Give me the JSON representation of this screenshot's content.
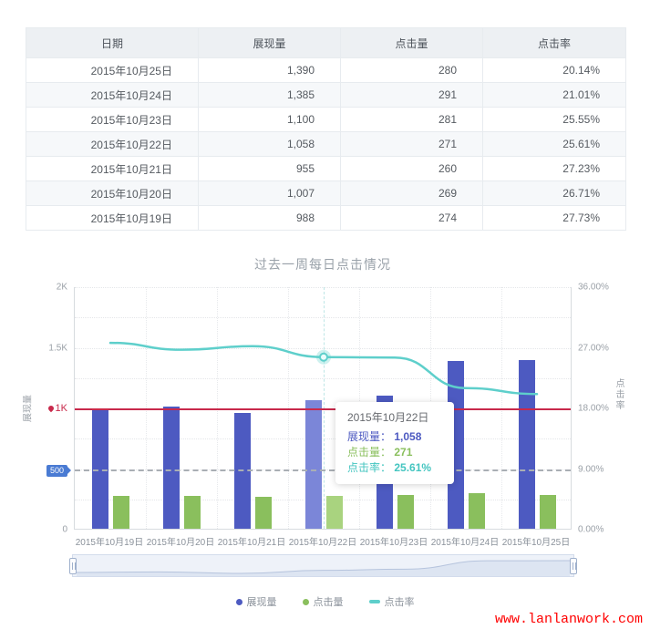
{
  "table": {
    "columns": [
      "日期",
      "展现量",
      "点击量",
      "点击率"
    ],
    "rows": [
      [
        "2015年10月25日",
        "1,390",
        "280",
        "20.14%"
      ],
      [
        "2015年10月24日",
        "1,385",
        "291",
        "21.01%"
      ],
      [
        "2015年10月23日",
        "1,100",
        "281",
        "25.55%"
      ],
      [
        "2015年10月22日",
        "1,058",
        "271",
        "25.61%"
      ],
      [
        "2015年10月21日",
        "955",
        "260",
        "27.23%"
      ],
      [
        "2015年10月20日",
        "1,007",
        "269",
        "26.71%"
      ],
      [
        "2015年10月19日",
        "988",
        "274",
        "27.73%"
      ]
    ]
  },
  "chart_data": {
    "type": "bar",
    "subtype": "grouped bars + smooth line, dual y-axis",
    "title": "过去一周每日点击情况",
    "categories": [
      "2015年10月19日",
      "2015年10月20日",
      "2015年10月21日",
      "2015年10月22日",
      "2015年10月23日",
      "2015年10月24日",
      "2015年10月25日"
    ],
    "series": [
      {
        "name": "展现量",
        "type": "bar",
        "axis": "left",
        "color": "#4d5ac1",
        "highlight_color": "#7b86d8",
        "values": [
          988,
          1007,
          955,
          1058,
          1100,
          1385,
          1390
        ]
      },
      {
        "name": "点击量",
        "type": "bar",
        "axis": "left",
        "color": "#8abf5d",
        "highlight_color": "#a9d37f",
        "values": [
          274,
          269,
          260,
          271,
          281,
          291,
          280
        ]
      },
      {
        "name": "点击率",
        "type": "line",
        "axis": "right",
        "color": "#5ecfcb",
        "values": [
          27.73,
          26.71,
          27.23,
          25.61,
          25.55,
          21.01,
          20.14
        ]
      }
    ],
    "highlight_index": 3,
    "left_axis": {
      "name": "展现量",
      "min": 0,
      "max": 2000,
      "ticks": [
        "2K",
        "1.5K",
        "1K",
        "500",
        "0"
      ]
    },
    "right_axis": {
      "name": "点击率",
      "min": 0,
      "max": 36,
      "ticks": [
        "36.00%",
        "27.00%",
        "18.00%",
        "9.00%",
        "0.00%"
      ]
    },
    "marklines": [
      {
        "value": 1000,
        "label": "1K",
        "color": "#c8294b",
        "style": "solid"
      },
      {
        "value": 500,
        "label": "500",
        "color": "#a9aeb4",
        "style": "dashed",
        "label_bg": "#4a7bd3"
      }
    ],
    "legend": [
      {
        "label": "展现量",
        "color": "#4d5ac1",
        "marker": "dot"
      },
      {
        "label": "点击量",
        "color": "#8abf5d",
        "marker": "dot"
      },
      {
        "label": "点击率",
        "color": "#5ecfcb",
        "marker": "dash"
      }
    ],
    "legend_position": "bottom",
    "grid": true
  },
  "tooltip": {
    "title": "2015年10月22日",
    "rows": [
      {
        "label": "展现量",
        "value": "1,058",
        "color": "#4d5ac1"
      },
      {
        "label": "点击量",
        "value": "271",
        "color": "#8abf5d"
      },
      {
        "label": "点击率",
        "value": "25.61%",
        "color": "#44c5c0"
      }
    ]
  },
  "watermark": "www.lanlanwork.com"
}
